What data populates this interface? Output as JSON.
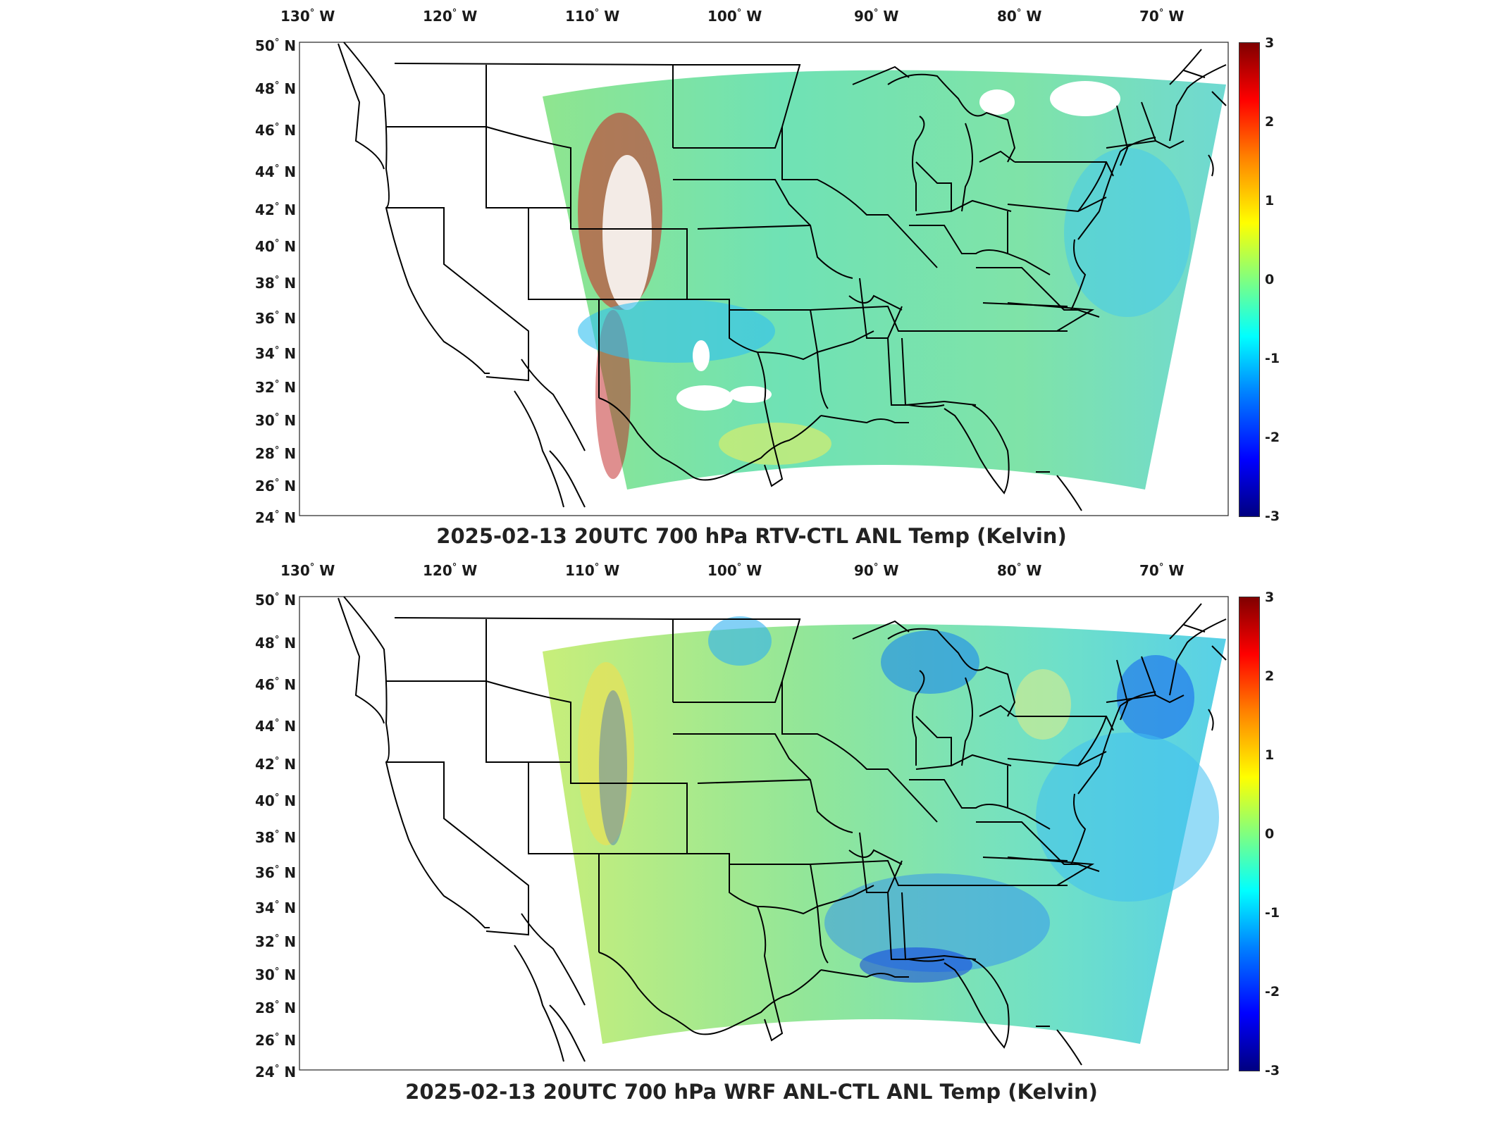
{
  "panels": [
    {
      "title": "2025-02-13 20UTC 700 hPa RTV-CTL ANL Temp (Kelvin)",
      "field": "RTV-CTL",
      "colorbar_ticks": [
        "3",
        "2",
        "1",
        "0",
        "-1",
        "-2",
        "-3"
      ]
    },
    {
      "title": "2025-02-13 20UTC 700 hPa WRF ANL-CTL ANL Temp (Kelvin)",
      "field": "WRF ANL-CTL",
      "colorbar_ticks": [
        "3",
        "2",
        "1",
        "0",
        "-1",
        "-2",
        "-3"
      ]
    }
  ],
  "lon_labels": [
    "130",
    "120",
    "110",
    "100",
    "90",
    "80",
    "70"
  ],
  "lon_suffix": "W",
  "lat_labels": [
    "50",
    "48",
    "46",
    "44",
    "42",
    "40",
    "38",
    "36",
    "34",
    "32",
    "30",
    "28",
    "26",
    "24"
  ],
  "lat_suffix": "N",
  "degree_symbol": "°",
  "colormap": {
    "name": "jet",
    "range": [
      -3,
      3
    ],
    "colors": [
      "#000080",
      "#0000ff",
      "#0080ff",
      "#00ffff",
      "#80ff80",
      "#ffff00",
      "#ff8000",
      "#ff0000",
      "#800000"
    ]
  },
  "background_color": "#ffffff",
  "data_fill_color": "#7fe0b0"
}
